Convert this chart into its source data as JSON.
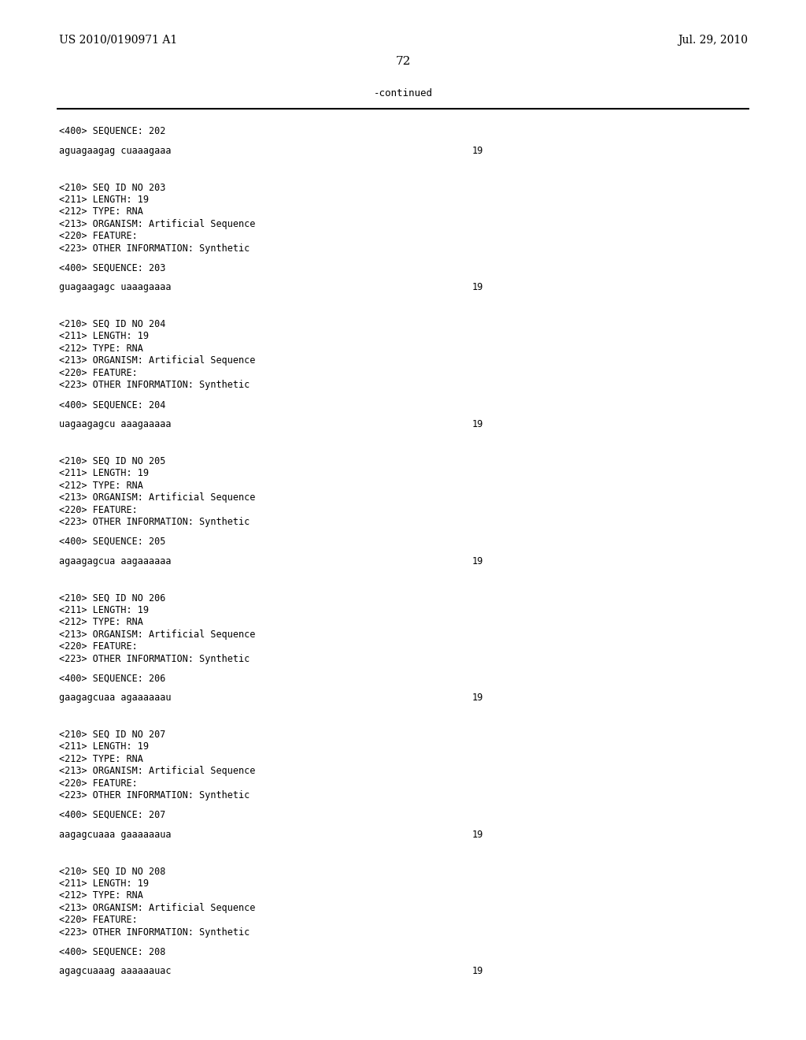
{
  "page_left": "US 2010/0190971 A1",
  "page_right": "Jul. 29, 2010",
  "page_number": "72",
  "continued_label": "-continued",
  "background_color": "#ffffff",
  "text_color": "#000000",
  "lines": [
    {
      "type": "seq400",
      "text": "<400> SEQUENCE: 202"
    },
    {
      "type": "blank_half"
    },
    {
      "type": "sequence",
      "text": "aguagaagag cuaaagaaa",
      "num": "19"
    },
    {
      "type": "blank"
    },
    {
      "type": "blank"
    },
    {
      "type": "seq210",
      "text": "<210> SEQ ID NO 203"
    },
    {
      "type": "seq_info",
      "text": "<211> LENGTH: 19"
    },
    {
      "type": "seq_info",
      "text": "<212> TYPE: RNA"
    },
    {
      "type": "seq_info",
      "text": "<213> ORGANISM: Artificial Sequence"
    },
    {
      "type": "seq_info",
      "text": "<220> FEATURE:"
    },
    {
      "type": "seq_info",
      "text": "<223> OTHER INFORMATION: Synthetic"
    },
    {
      "type": "blank_half"
    },
    {
      "type": "seq400",
      "text": "<400> SEQUENCE: 203"
    },
    {
      "type": "blank_half"
    },
    {
      "type": "sequence",
      "text": "guagaagagc uaaagaaaa",
      "num": "19"
    },
    {
      "type": "blank"
    },
    {
      "type": "blank"
    },
    {
      "type": "seq210",
      "text": "<210> SEQ ID NO 204"
    },
    {
      "type": "seq_info",
      "text": "<211> LENGTH: 19"
    },
    {
      "type": "seq_info",
      "text": "<212> TYPE: RNA"
    },
    {
      "type": "seq_info",
      "text": "<213> ORGANISM: Artificial Sequence"
    },
    {
      "type": "seq_info",
      "text": "<220> FEATURE:"
    },
    {
      "type": "seq_info",
      "text": "<223> OTHER INFORMATION: Synthetic"
    },
    {
      "type": "blank_half"
    },
    {
      "type": "seq400",
      "text": "<400> SEQUENCE: 204"
    },
    {
      "type": "blank_half"
    },
    {
      "type": "sequence",
      "text": "uagaagagcu aaagaaaaa",
      "num": "19"
    },
    {
      "type": "blank"
    },
    {
      "type": "blank"
    },
    {
      "type": "seq210",
      "text": "<210> SEQ ID NO 205"
    },
    {
      "type": "seq_info",
      "text": "<211> LENGTH: 19"
    },
    {
      "type": "seq_info",
      "text": "<212> TYPE: RNA"
    },
    {
      "type": "seq_info",
      "text": "<213> ORGANISM: Artificial Sequence"
    },
    {
      "type": "seq_info",
      "text": "<220> FEATURE:"
    },
    {
      "type": "seq_info",
      "text": "<223> OTHER INFORMATION: Synthetic"
    },
    {
      "type": "blank_half"
    },
    {
      "type": "seq400",
      "text": "<400> SEQUENCE: 205"
    },
    {
      "type": "blank_half"
    },
    {
      "type": "sequence",
      "text": "agaagagcua aagaaaaaa",
      "num": "19"
    },
    {
      "type": "blank"
    },
    {
      "type": "blank"
    },
    {
      "type": "seq210",
      "text": "<210> SEQ ID NO 206"
    },
    {
      "type": "seq_info",
      "text": "<211> LENGTH: 19"
    },
    {
      "type": "seq_info",
      "text": "<212> TYPE: RNA"
    },
    {
      "type": "seq_info",
      "text": "<213> ORGANISM: Artificial Sequence"
    },
    {
      "type": "seq_info",
      "text": "<220> FEATURE:"
    },
    {
      "type": "seq_info",
      "text": "<223> OTHER INFORMATION: Synthetic"
    },
    {
      "type": "blank_half"
    },
    {
      "type": "seq400",
      "text": "<400> SEQUENCE: 206"
    },
    {
      "type": "blank_half"
    },
    {
      "type": "sequence",
      "text": "gaagagcuaa agaaaaaau",
      "num": "19"
    },
    {
      "type": "blank"
    },
    {
      "type": "blank"
    },
    {
      "type": "seq210",
      "text": "<210> SEQ ID NO 207"
    },
    {
      "type": "seq_info",
      "text": "<211> LENGTH: 19"
    },
    {
      "type": "seq_info",
      "text": "<212> TYPE: RNA"
    },
    {
      "type": "seq_info",
      "text": "<213> ORGANISM: Artificial Sequence"
    },
    {
      "type": "seq_info",
      "text": "<220> FEATURE:"
    },
    {
      "type": "seq_info",
      "text": "<223> OTHER INFORMATION: Synthetic"
    },
    {
      "type": "blank_half"
    },
    {
      "type": "seq400",
      "text": "<400> SEQUENCE: 207"
    },
    {
      "type": "blank_half"
    },
    {
      "type": "sequence",
      "text": "aagagcuaaa gaaaaaaua",
      "num": "19"
    },
    {
      "type": "blank"
    },
    {
      "type": "blank"
    },
    {
      "type": "seq210",
      "text": "<210> SEQ ID NO 208"
    },
    {
      "type": "seq_info",
      "text": "<211> LENGTH: 19"
    },
    {
      "type": "seq_info",
      "text": "<212> TYPE: RNA"
    },
    {
      "type": "seq_info",
      "text": "<213> ORGANISM: Artificial Sequence"
    },
    {
      "type": "seq_info",
      "text": "<220> FEATURE:"
    },
    {
      "type": "seq_info",
      "text": "<223> OTHER INFORMATION: Synthetic"
    },
    {
      "type": "blank_half"
    },
    {
      "type": "seq400",
      "text": "<400> SEQUENCE: 208"
    },
    {
      "type": "blank_half"
    },
    {
      "type": "sequence",
      "text": "agagcuaaag aaaaaauac",
      "num": "19"
    }
  ]
}
